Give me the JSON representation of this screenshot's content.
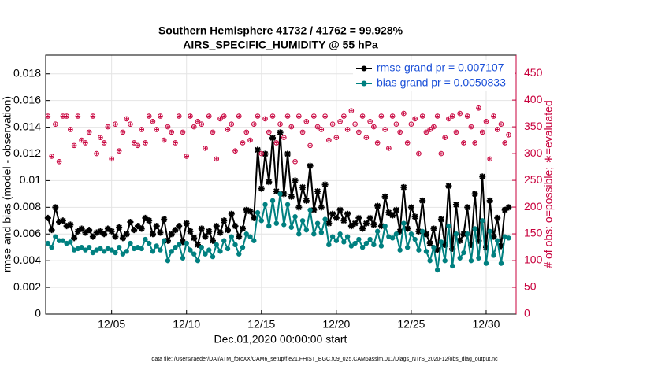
{
  "chart_data": {
    "type": "line",
    "title": "Southern Hemisphere 41732 / 41762 = 99.928%",
    "subtitle": "AIRS_SPECIFIC_HUMIDITY @ 55 hPa",
    "x_label": "Dec.01,2020 00:00:00 start",
    "y_label": "rmse and bias (model - observation)",
    "y2_label": "# of obs: o=possible; ∗=evaluated",
    "footnote": "data file: /Users/raeder/DAI/ATM_forcXX/CAM6_setup/f.e21.FHIST_BGC.f09_025.CAM6assim.011/Diags_NTrS_2020-12/obs_diag_output.nc",
    "xlim": [
      0.6,
      32
    ],
    "xticks": [
      {
        "value": 5,
        "label": "12/05"
      },
      {
        "value": 10,
        "label": "12/10"
      },
      {
        "value": 15,
        "label": "12/15"
      },
      {
        "value": 20,
        "label": "12/20"
      },
      {
        "value": 25,
        "label": "12/25"
      },
      {
        "value": 30,
        "label": "12/30"
      }
    ],
    "ylim": [
      0,
      0.0194
    ],
    "yticks": [
      0,
      0.002,
      0.004,
      0.006,
      0.008,
      0.01,
      0.012,
      0.014,
      0.016,
      0.018
    ],
    "y2lim": [
      0,
      484
    ],
    "y2ticks": [
      0,
      50,
      100,
      150,
      200,
      250,
      300,
      350,
      400,
      450
    ],
    "y2_color": "#c8003c",
    "grid": true,
    "legend": "upper right",
    "x": [
      0.75,
      1,
      1.25,
      1.5,
      1.75,
      2,
      2.25,
      2.5,
      2.75,
      3,
      3.25,
      3.5,
      3.75,
      4,
      4.25,
      4.5,
      4.75,
      5,
      5.25,
      5.5,
      5.75,
      6,
      6.25,
      6.5,
      6.75,
      7,
      7.25,
      7.5,
      7.75,
      8,
      8.25,
      8.5,
      8.75,
      9,
      9.25,
      9.5,
      9.75,
      10,
      10.25,
      10.5,
      10.75,
      11,
      11.25,
      11.5,
      11.75,
      12,
      12.25,
      12.5,
      12.75,
      13,
      13.25,
      13.5,
      13.75,
      14,
      14.25,
      14.5,
      14.75,
      15,
      15.25,
      15.5,
      15.75,
      16,
      16.25,
      16.5,
      16.75,
      17,
      17.25,
      17.5,
      17.75,
      18,
      18.25,
      18.5,
      18.75,
      19,
      19.25,
      19.5,
      19.75,
      20,
      20.25,
      20.5,
      20.75,
      21,
      21.25,
      21.5,
      21.75,
      22,
      22.25,
      22.5,
      22.75,
      23,
      23.25,
      23.5,
      23.75,
      24,
      24.25,
      24.5,
      24.75,
      25,
      25.25,
      25.5,
      25.75,
      26,
      26.25,
      26.5,
      26.75,
      27,
      27.25,
      27.5,
      27.75,
      28,
      28.25,
      28.5,
      28.75,
      29,
      29.25,
      29.5,
      29.75,
      30,
      30.25,
      30.5,
      30.75,
      31,
      31.25,
      31.5
    ],
    "series": [
      {
        "name": "rmse grand pr = 0.007107",
        "color": "#000000",
        "marker": "star",
        "values": [
          0.0072,
          0.0063,
          0.008,
          0.0069,
          0.007,
          0.0066,
          0.0067,
          0.0057,
          0.0062,
          0.0064,
          0.0061,
          0.0063,
          0.0058,
          0.0061,
          0.0062,
          0.006,
          0.0064,
          0.0062,
          0.0058,
          0.0065,
          0.0057,
          0.006,
          0.0069,
          0.0063,
          0.0066,
          0.0064,
          0.0072,
          0.007,
          0.006,
          0.0066,
          0.0061,
          0.0071,
          0.0055,
          0.006,
          0.0063,
          0.0066,
          0.0054,
          0.0068,
          0.0062,
          0.0057,
          0.0052,
          0.0064,
          0.0058,
          0.0062,
          0.0055,
          0.0066,
          0.0061,
          0.007,
          0.0063,
          0.0075,
          0.0066,
          0.0058,
          0.0064,
          0.0078,
          0.0077,
          0.0072,
          0.0123,
          0.0094,
          0.012,
          0.0099,
          0.0132,
          0.0092,
          0.0136,
          0.009,
          0.012,
          0.0088,
          0.01,
          0.008,
          0.0095,
          0.0085,
          0.0111,
          0.0078,
          0.0092,
          0.008,
          0.0097,
          0.0068,
          0.0075,
          0.0072,
          0.0078,
          0.007,
          0.0075,
          0.0066,
          0.0068,
          0.0072,
          0.0064,
          0.0068,
          0.0072,
          0.0067,
          0.0081,
          0.0066,
          0.0088,
          0.0076,
          0.0074,
          0.0078,
          0.0062,
          0.0095,
          0.0064,
          0.008,
          0.0073,
          0.0062,
          0.0085,
          0.006,
          0.0053,
          0.0064,
          0.0048,
          0.0071,
          0.0052,
          0.0096,
          0.0049,
          0.0082,
          0.0055,
          0.006,
          0.008,
          0.0052,
          0.009,
          0.0055,
          0.0103,
          0.005,
          0.0085,
          0.0058,
          0.0072,
          0.0051,
          0.0078,
          0.008
        ]
      },
      {
        "name": "bias grand pr = 0.0050833",
        "color": "#008080",
        "marker": "dot",
        "values": [
          0.0053,
          0.005,
          0.0058,
          0.0055,
          0.0055,
          0.0053,
          0.0054,
          0.0048,
          0.0049,
          0.005,
          0.0048,
          0.005,
          0.0046,
          0.0048,
          0.0049,
          0.0047,
          0.0049,
          0.0048,
          0.0046,
          0.005,
          0.0045,
          0.0047,
          0.0053,
          0.0049,
          0.005,
          0.0049,
          0.0056,
          0.0053,
          0.0047,
          0.0051,
          0.0048,
          0.0055,
          0.004,
          0.0047,
          0.005,
          0.0052,
          0.0042,
          0.0053,
          0.0048,
          0.0045,
          0.004,
          0.005,
          0.0045,
          0.0048,
          0.0043,
          0.0052,
          0.0047,
          0.0055,
          0.0049,
          0.0058,
          0.0052,
          0.0045,
          0.005,
          0.006,
          0.0058,
          0.0055,
          0.0076,
          0.007,
          0.0082,
          0.0066,
          0.0085,
          0.0068,
          0.009,
          0.0067,
          0.0082,
          0.0065,
          0.0073,
          0.006,
          0.007,
          0.0063,
          0.0078,
          0.006,
          0.0068,
          0.0061,
          0.0071,
          0.0052,
          0.0058,
          0.0055,
          0.006,
          0.0054,
          0.0058,
          0.0051,
          0.0053,
          0.0056,
          0.005,
          0.0053,
          0.0056,
          0.0052,
          0.0062,
          0.0051,
          0.0066,
          0.0058,
          0.0057,
          0.006,
          0.0048,
          0.0068,
          0.005,
          0.006,
          0.0056,
          0.0048,
          0.0062,
          0.0047,
          0.004,
          0.005,
          0.0033,
          0.0054,
          0.004,
          0.0066,
          0.0036,
          0.006,
          0.0042,
          0.0046,
          0.006,
          0.004,
          0.0064,
          0.0042,
          0.007,
          0.0038,
          0.0062,
          0.0044,
          0.0055,
          0.0038,
          0.0058,
          0.0057
        ]
      },
      {
        "axis": "y2",
        "color": "#c8003c",
        "marker": "obs",
        "values": [
          370,
          295,
          355,
          285,
          370,
          370,
          345,
          315,
          370,
          325,
          320,
          340,
          370,
          300,
          330,
          320,
          350,
          290,
          355,
          305,
          340,
          365,
          355,
          320,
          315,
          345,
          320,
          370,
          360,
          345,
          370,
          325,
          350,
          340,
          320,
          370,
          340,
          295,
          370,
          350,
          360,
          355,
          310,
          370,
          340,
          290,
          365,
          370,
          345,
          355,
          305,
          370,
          320,
          340,
          325,
          355,
          370,
          300,
          365,
          340,
          370,
          320,
          355,
          330,
          370,
          350,
          285,
          370,
          340,
          360,
          315,
          370,
          350,
          345,
          370,
          325,
          355,
          330,
          360,
          370,
          345,
          380,
          355,
          340,
          370,
          330,
          360,
          350,
          320,
          370,
          345,
          310,
          370,
          355,
          340,
          375,
          320,
          355,
          365,
          300,
          370,
          340,
          345,
          350,
          370,
          300,
          330,
          365,
          370,
          340,
          375,
          320,
          370,
          350,
          320,
          385,
          340,
          360,
          290,
          370,
          345,
          355,
          320,
          335
        ]
      }
    ]
  }
}
